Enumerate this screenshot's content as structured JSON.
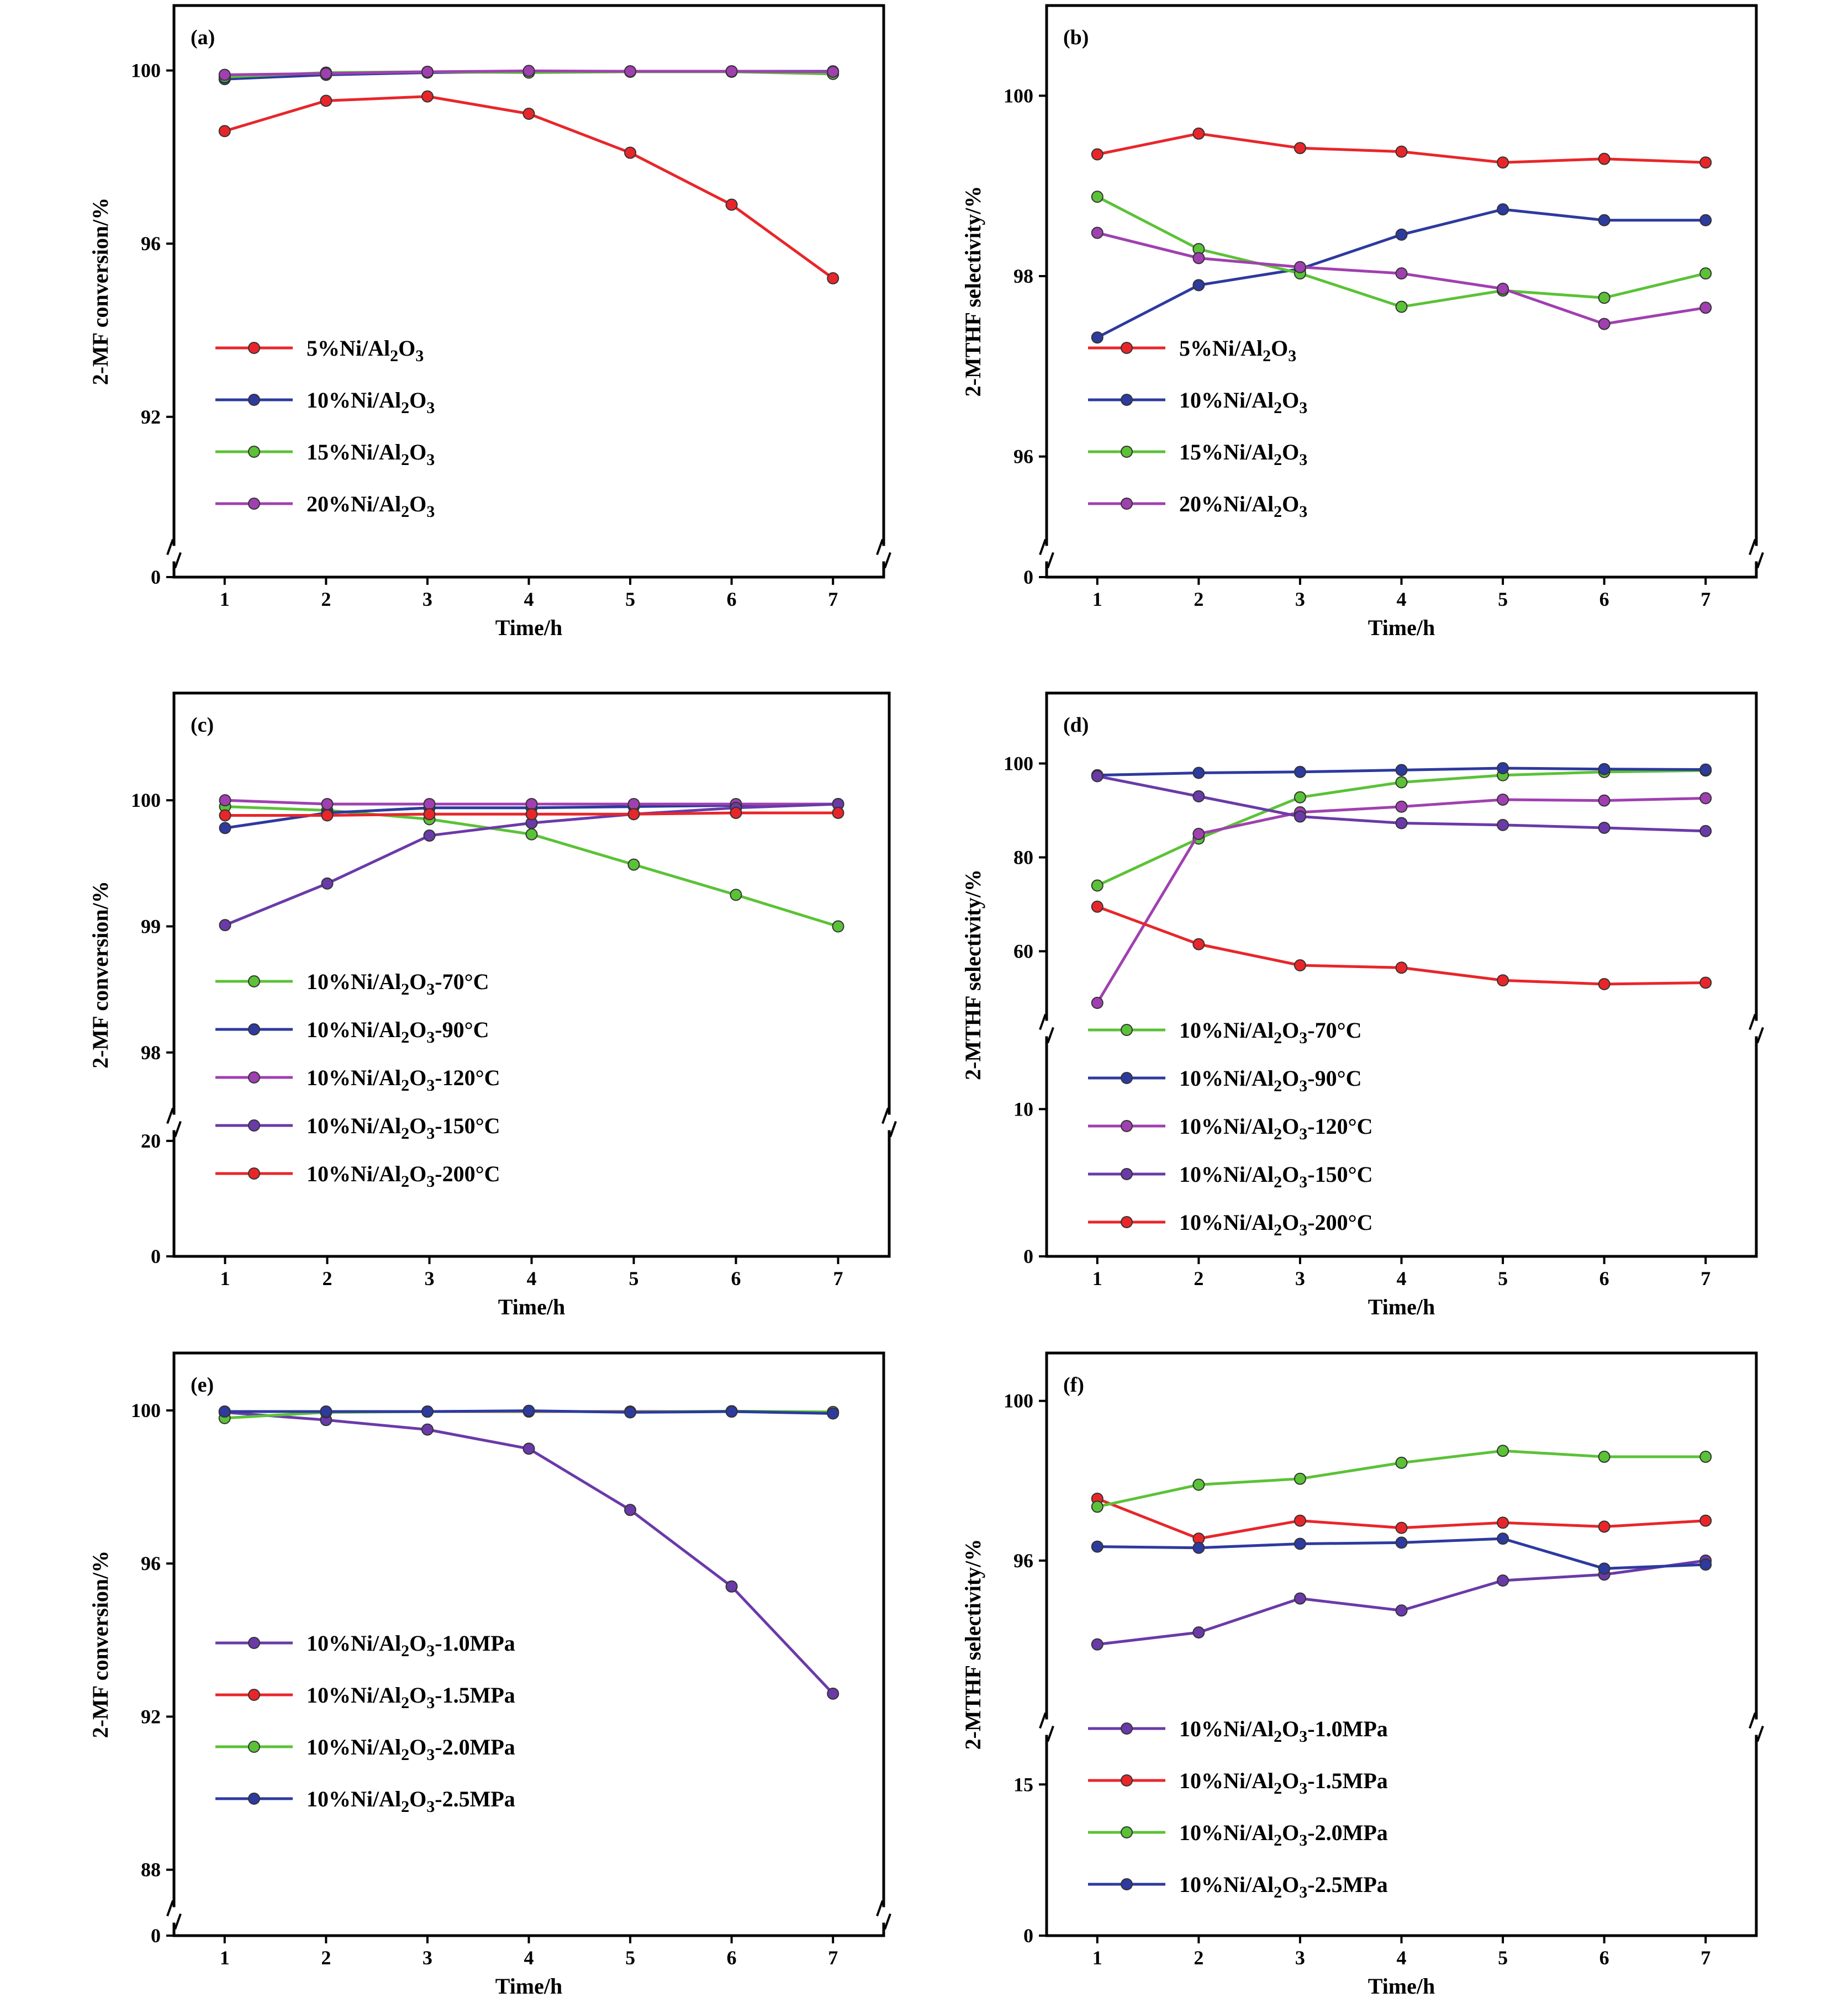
{
  "chart_data": [
    {
      "type": "line",
      "panel_label": "(a)",
      "xlabel": "Time/h",
      "ylabel": "2-MF conversion/%",
      "x": [
        1,
        2,
        3,
        4,
        5,
        6,
        7
      ],
      "xlim": [
        0.5,
        7.5
      ],
      "y_segments": [
        {
          "range": [
            0,
            0.5
          ],
          "ticks": [
            0
          ]
        },
        {
          "range": [
            89,
            101.5
          ],
          "ticks": [
            92,
            96,
            100
          ]
        }
      ],
      "legend_position": "left-middle",
      "series": [
        {
          "name": "5%Ni/Al2O3",
          "color": "#e8262a",
          "values": [
            98.6,
            99.3,
            99.4,
            99.0,
            98.1,
            96.9,
            95.2
          ]
        },
        {
          "name": "10%Ni/Al2O3",
          "color": "#2d3a9e",
          "values": [
            99.8,
            99.9,
            99.95,
            99.97,
            99.98,
            99.98,
            99.98
          ]
        },
        {
          "name": "15%Ni/Al2O3",
          "color": "#5bc237",
          "values": [
            99.85,
            99.95,
            99.97,
            99.95,
            99.97,
            99.97,
            99.92
          ]
        },
        {
          "name": "20%Ni/Al2O3",
          "color": "#a040b0",
          "values": [
            99.9,
            99.93,
            99.97,
            99.99,
            99.98,
            99.98,
            99.97
          ]
        }
      ]
    },
    {
      "type": "line",
      "panel_label": "(b)",
      "xlabel": "Time/h",
      "ylabel": "2-MTHF selectivity/%",
      "x": [
        1,
        2,
        3,
        4,
        5,
        6,
        7
      ],
      "xlim": [
        0.5,
        7.5
      ],
      "y_segments": [
        {
          "range": [
            0,
            0.5
          ],
          "ticks": [
            0
          ]
        },
        {
          "range": [
            95,
            101
          ],
          "ticks": [
            96,
            98,
            100
          ]
        }
      ],
      "legend_position": "left-middle",
      "series": [
        {
          "name": "5%Ni/Al2O3",
          "color": "#e8262a",
          "values": [
            99.35,
            99.58,
            99.42,
            99.38,
            99.26,
            99.3,
            99.26
          ]
        },
        {
          "name": "10%Ni/Al2O3",
          "color": "#2d3a9e",
          "values": [
            97.32,
            97.9,
            98.08,
            98.46,
            98.74,
            98.62,
            98.62
          ]
        },
        {
          "name": "15%Ni/Al2O3",
          "color": "#5bc237",
          "values": [
            98.88,
            98.3,
            98.03,
            97.66,
            97.84,
            97.76,
            98.03
          ]
        },
        {
          "name": "20%Ni/Al2O3",
          "color": "#a040b0",
          "values": [
            98.48,
            98.2,
            98.1,
            98.03,
            97.86,
            97.47,
            97.65
          ]
        }
      ]
    },
    {
      "type": "line",
      "panel_label": "(c)",
      "xlabel": "Time/h",
      "ylabel": "2-MF conversion/%",
      "x": [
        1,
        2,
        3,
        4,
        5,
        6,
        7
      ],
      "xlim": [
        0.5,
        7.5
      ],
      "y_segments": [
        {
          "range": [
            0,
            22
          ],
          "ticks": [
            0,
            20
          ]
        },
        {
          "range": [
            97.5,
            100.85
          ],
          "ticks": [
            98,
            99,
            100
          ]
        }
      ],
      "legend_position": "left-middle",
      "series": [
        {
          "name": "10%Ni/Al2O3-70°C",
          "color": "#5bc237",
          "values": [
            99.95,
            99.92,
            99.85,
            99.73,
            99.49,
            99.25,
            99.0
          ]
        },
        {
          "name": "10%Ni/Al2O3-90°C",
          "color": "#2d3a9e",
          "values": [
            99.78,
            99.9,
            99.94,
            99.94,
            99.95,
            99.96,
            99.97
          ]
        },
        {
          "name": "10%Ni/Al2O3-120°C",
          "color": "#a040b0",
          "values": [
            100.0,
            99.97,
            99.97,
            99.97,
            99.97,
            99.97,
            99.97
          ]
        },
        {
          "name": "10%Ni/Al2O3-150°C",
          "color": "#6a3aa8",
          "values": [
            99.01,
            99.34,
            99.72,
            99.82,
            99.89,
            99.94,
            99.97
          ]
        },
        {
          "name": "10%Ni/Al2O3-200°C",
          "color": "#e8262a",
          "values": [
            99.88,
            99.88,
            99.89,
            99.89,
            99.89,
            99.9,
            99.9
          ]
        }
      ]
    },
    {
      "type": "line",
      "panel_label": "(d)",
      "xlabel": "Time/h",
      "ylabel": "2-MTHF selectivity/%",
      "x": [
        1,
        2,
        3,
        4,
        5,
        6,
        7
      ],
      "xlim": [
        0.5,
        7.5
      ],
      "y_segments": [
        {
          "range": [
            0,
            15
          ],
          "ticks": [
            0,
            10
          ]
        },
        {
          "range": [
            45,
            115
          ],
          "ticks": [
            60,
            80,
            100
          ]
        }
      ],
      "legend_position": "left-middle",
      "series": [
        {
          "name": "10%Ni/Al2O3-70°C",
          "color": "#5bc237",
          "values": [
            74.0,
            84.0,
            92.8,
            96.0,
            97.5,
            98.2,
            98.5
          ]
        },
        {
          "name": "10%Ni/Al2O3-90°C",
          "color": "#2d3a9e",
          "values": [
            97.5,
            98.0,
            98.2,
            98.6,
            99.0,
            98.8,
            98.7
          ]
        },
        {
          "name": "10%Ni/Al2O3-120°C",
          "color": "#a040b0",
          "values": [
            49.0,
            85.0,
            89.6,
            90.8,
            92.3,
            92.1,
            92.6
          ]
        },
        {
          "name": "10%Ni/Al2O3-150°C",
          "color": "#6a3aa8",
          "values": [
            97.3,
            93.0,
            88.7,
            87.3,
            86.9,
            86.3,
            85.6
          ]
        },
        {
          "name": "10%Ni/Al2O3-200°C",
          "color": "#e8262a",
          "values": [
            69.5,
            61.5,
            57.0,
            56.5,
            53.8,
            53.0,
            53.3
          ]
        }
      ]
    },
    {
      "type": "line",
      "panel_label": "(e)",
      "xlabel": "Time/h",
      "ylabel": "2-MF conversion/%",
      "x": [
        1,
        2,
        3,
        4,
        5,
        6,
        7
      ],
      "xlim": [
        0.5,
        7.5
      ],
      "y_segments": [
        {
          "range": [
            0,
            0.5
          ],
          "ticks": [
            0
          ]
        },
        {
          "range": [
            87,
            101.5
          ],
          "ticks": [
            88,
            92,
            96,
            100
          ]
        }
      ],
      "legend_position": "left-middle",
      "series": [
        {
          "name": "10%Ni/Al2O3-1.0MPa",
          "color": "#6a3aa8",
          "values": [
            99.95,
            99.75,
            99.5,
            99.0,
            97.4,
            95.4,
            92.6
          ]
        },
        {
          "name": "10%Ni/Al2O3-1.5MPa",
          "color": "#e8262a",
          "values": [
            99.97,
            99.97,
            99.97,
            99.97,
            99.97,
            99.97,
            99.95
          ]
        },
        {
          "name": "10%Ni/Al2O3-2.0MPa",
          "color": "#5bc237",
          "values": [
            99.8,
            99.95,
            99.97,
            99.98,
            99.96,
            99.98,
            99.96
          ]
        },
        {
          "name": "10%Ni/Al2O3-2.5MPa",
          "color": "#2d3a9e",
          "values": [
            99.97,
            99.97,
            99.97,
            99.99,
            99.95,
            99.97,
            99.92
          ]
        }
      ]
    },
    {
      "type": "line",
      "panel_label": "(f)",
      "xlabel": "Time/h",
      "ylabel": "2-MTHF selectivity/%",
      "x": [
        1,
        2,
        3,
        4,
        5,
        6,
        7
      ],
      "xlim": [
        0.5,
        7.5
      ],
      "y_segments": [
        {
          "range": [
            0,
            20
          ],
          "ticks": [
            0,
            15
          ]
        },
        {
          "range": [
            92,
            101.2
          ],
          "ticks": [
            96,
            100
          ]
        }
      ],
      "legend_position": "left-middle",
      "series": [
        {
          "name": "10%Ni/Al2O3-1.0MPa",
          "color": "#6a3aa8",
          "values": [
            93.9,
            94.2,
            95.05,
            94.75,
            95.5,
            95.65,
            96.0
          ]
        },
        {
          "name": "10%Ni/Al2O3-1.5MPa",
          "color": "#e8262a",
          "values": [
            97.55,
            96.55,
            97.0,
            96.82,
            96.95,
            96.85,
            97.0
          ]
        },
        {
          "name": "10%Ni/Al2O3-2.0MPa",
          "color": "#5bc237",
          "values": [
            97.35,
            97.9,
            98.05,
            98.45,
            98.75,
            98.6,
            98.6
          ]
        },
        {
          "name": "10%Ni/Al2O3-2.5MPa",
          "color": "#2d3a9e",
          "values": [
            96.35,
            96.32,
            96.42,
            96.45,
            96.55,
            95.8,
            95.9
          ]
        }
      ]
    }
  ]
}
